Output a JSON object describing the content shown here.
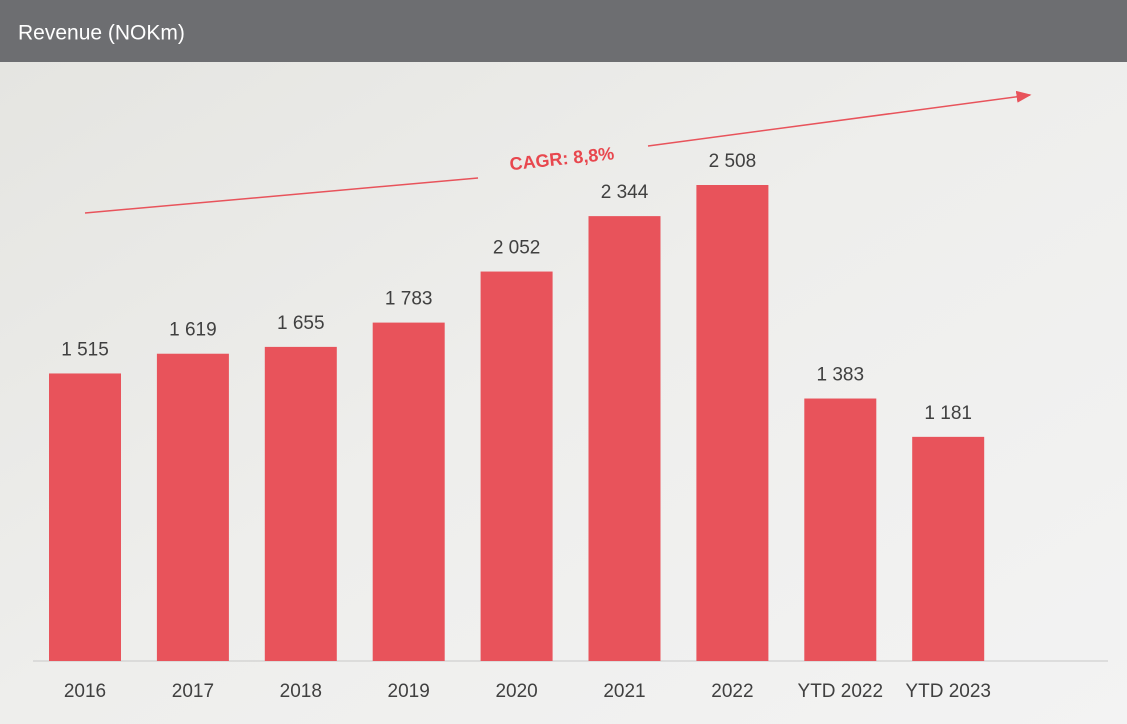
{
  "chart_data": {
    "type": "bar",
    "title": "Revenue (NOKm)",
    "categories": [
      "2016",
      "2017",
      "2018",
      "2019",
      "2020",
      "2021",
      "2022",
      "YTD 2022",
      "YTD 2023"
    ],
    "values": [
      1515,
      1619,
      1655,
      1783,
      2052,
      2344,
      2508,
      1383,
      1181
    ],
    "value_labels": [
      "1 515",
      "1 619",
      "1 655",
      "1 783",
      "2 052",
      "2 344",
      "2 508",
      "1 383",
      "1 181"
    ],
    "color": "#e8535b",
    "annotation": "CAGR: 8,8%"
  }
}
